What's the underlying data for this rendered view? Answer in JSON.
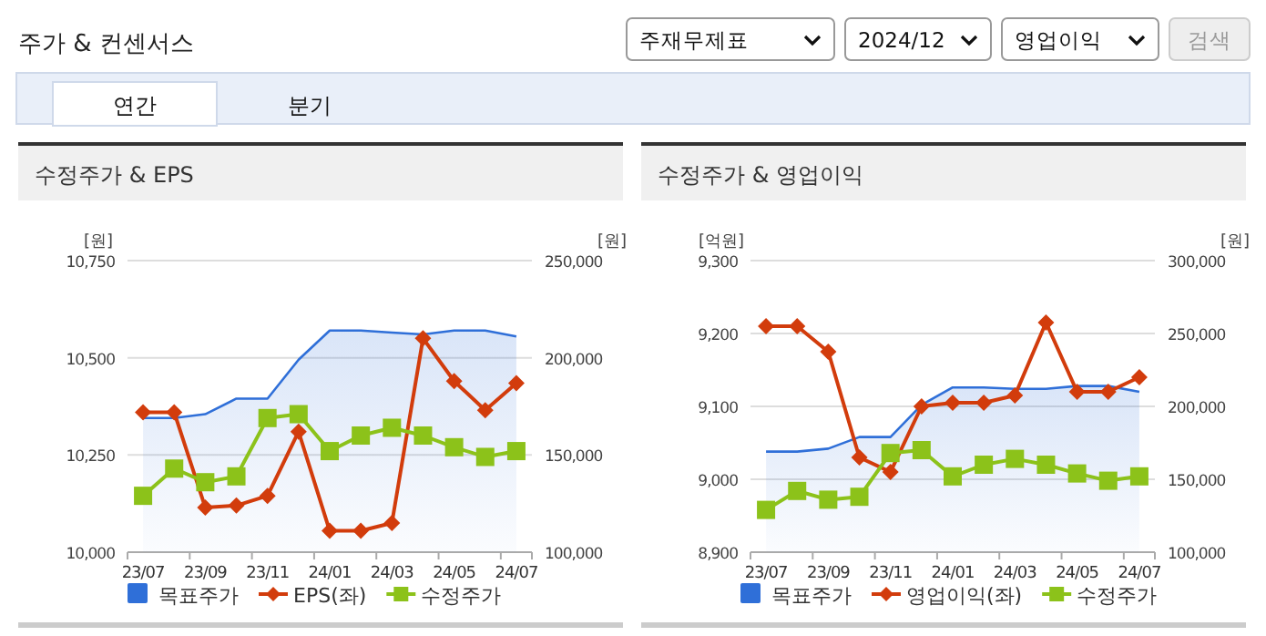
{
  "chart_data": [
    {
      "type": "line",
      "title": "수정주가 & EPS",
      "annotations": [
        "주가 & 컨센서스",
        "주재무제표",
        "2024/12",
        "영업이익",
        "검색",
        "연간",
        "분기"
      ],
      "ylabel": "[원]",
      "y2label": "[원]",
      "categories": [
        "23/07",
        null,
        "23/09",
        null,
        "23/11",
        null,
        "24/01",
        null,
        "24/03",
        null,
        "24/05",
        null,
        "24/07"
      ],
      "ylim": [
        10000,
        10750
      ],
      "yticks": [
        {
          "value": 10000,
          "label": "10,000"
        },
        {
          "value": 10250,
          "label": "10,250"
        },
        {
          "value": 10500,
          "label": "10,500"
        },
        {
          "value": 10750,
          "label": "10,750"
        }
      ],
      "y2lim": [
        100000,
        250000
      ],
      "y2ticks": [
        {
          "value": 100000,
          "label": "100,000"
        },
        {
          "value": 150000,
          "label": "150,000"
        },
        {
          "value": 200000,
          "label": "200,000"
        },
        {
          "value": 250000,
          "label": "250,000"
        }
      ],
      "grid": "y",
      "legend": "bottom",
      "series": [
        {
          "name": "목표주가",
          "type": "area",
          "axis": "y2",
          "color": "#2f6fd8",
          "marker": "none",
          "values": [
            169000,
            169000,
            171000,
            179000,
            179000,
            199000,
            214000,
            214000,
            213000,
            212000,
            214000,
            214000,
            211000
          ]
        },
        {
          "name": "EPS(좌)",
          "color": "#d23c0c",
          "marker": "diamond",
          "values": [
            10360,
            10360,
            10115,
            10120,
            10145,
            10310,
            10055,
            10055,
            10075,
            10550,
            10440,
            10365,
            10435
          ]
        },
        {
          "name": "수정주가",
          "axis": "y2",
          "color": "#8cc21a",
          "marker": "square",
          "values": [
            129000,
            143000,
            136000,
            139000,
            169000,
            171000,
            152000,
            160000,
            164000,
            160000,
            154000,
            149000,
            152000
          ]
        }
      ]
    },
    {
      "type": "line",
      "title": "수정주가 & 영업이익",
      "ylabel": "[억원]",
      "y2label": "[원]",
      "categories": [
        "23/07",
        null,
        "23/09",
        null,
        "23/11",
        null,
        "24/01",
        null,
        "24/03",
        null,
        "24/05",
        null,
        "24/07"
      ],
      "ylim": [
        8900,
        9300
      ],
      "yticks": [
        {
          "value": 8900,
          "label": "8,900"
        },
        {
          "value": 9000,
          "label": "9,000"
        },
        {
          "value": 9100,
          "label": "9,100"
        },
        {
          "value": 9200,
          "label": "9,200"
        },
        {
          "value": 9300,
          "label": "9,300"
        }
      ],
      "y2lim": [
        100000,
        300000
      ],
      "y2ticks": [
        {
          "value": 100000,
          "label": "100,000"
        },
        {
          "value": 150000,
          "label": "150,000"
        },
        {
          "value": 200000,
          "label": "200,000"
        },
        {
          "value": 250000,
          "label": "250,000"
        },
        {
          "value": 300000,
          "label": "300,000"
        }
      ],
      "grid": "y",
      "legend": "bottom",
      "series": [
        {
          "name": "목표주가",
          "type": "area",
          "axis": "y2",
          "color": "#2f6fd8",
          "marker": "none",
          "values": [
            169000,
            169000,
            171000,
            179000,
            179000,
            201000,
            213000,
            213000,
            212000,
            212000,
            214000,
            214000,
            210000
          ]
        },
        {
          "name": "영업이익(좌)",
          "color": "#d23c0c",
          "marker": "diamond",
          "values": [
            9210,
            9210,
            9175,
            9030,
            9010,
            9100,
            9105,
            9105,
            9115,
            9215,
            9120,
            9120,
            9140
          ]
        },
        {
          "name": "수정주가",
          "axis": "y2",
          "color": "#8cc21a",
          "marker": "square",
          "values": [
            129000,
            142000,
            136000,
            138000,
            168000,
            170000,
            152000,
            160000,
            164000,
            160000,
            154000,
            149000,
            152000
          ]
        }
      ]
    }
  ]
}
